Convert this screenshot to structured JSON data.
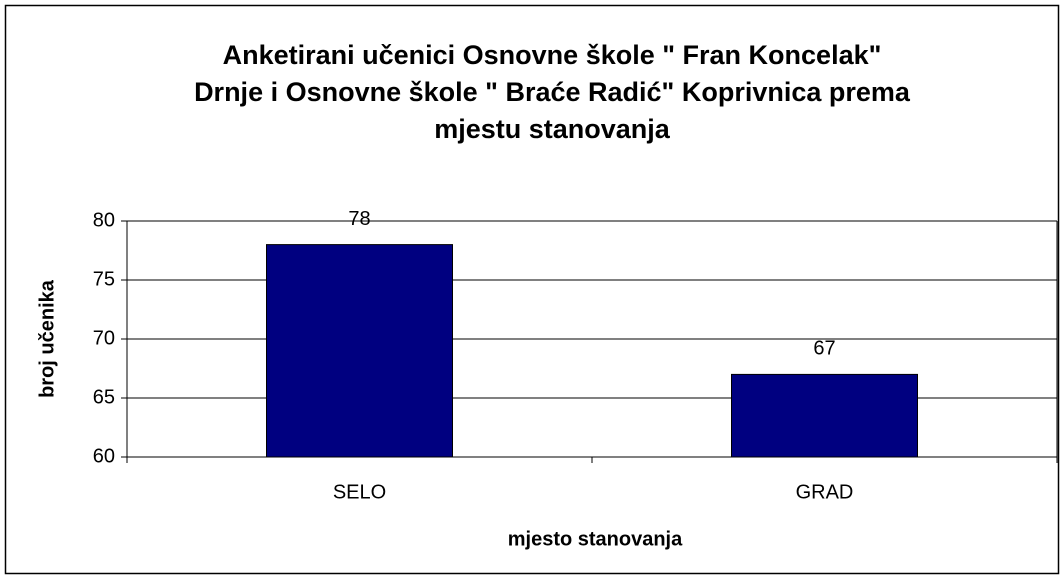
{
  "chart_data": {
    "type": "bar",
    "title": [
      "Anketirani učenici Osnovne škole \" Fran Koncelak\"",
      "Drnje i Osnovne škole \" Braće Radić\" Koprivnica prema",
      "mjestu stanovanja"
    ],
    "categories": [
      "SELO",
      "GRAD"
    ],
    "values": [
      78,
      67
    ],
    "color": "#000080",
    "ylim": [
      60,
      80
    ],
    "yticks": [
      60,
      65,
      70,
      75,
      80
    ],
    "grid": true,
    "x_label": "mjesto stanovanja",
    "y_label": "broj učenika"
  }
}
